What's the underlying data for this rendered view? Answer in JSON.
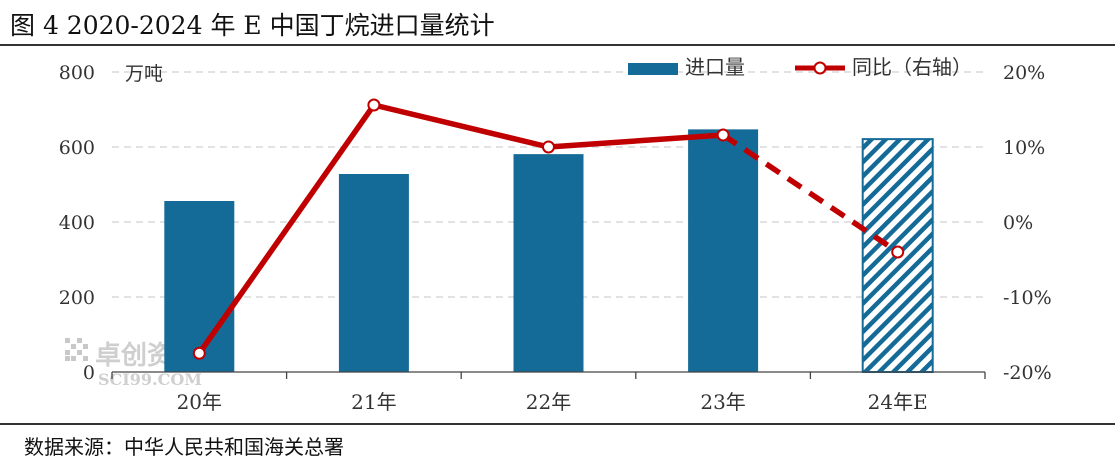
{
  "title": "图 4 2020-2024 年 E 中国丁烷进口量统计",
  "source": "数据来源：中华人民共和国海关总署",
  "watermark": {
    "brand": "卓创资讯",
    "domain": "SCI99.COM"
  },
  "colors": {
    "bar": "#156b98",
    "line": "#c00000",
    "grid": "#d0d0d0",
    "axis": "#444444"
  },
  "chart_data": {
    "type": "bar",
    "categories": [
      "20年",
      "21年",
      "22年",
      "23年",
      "24年E"
    ],
    "series": [
      {
        "name": "进口量",
        "type": "bar",
        "axis": "left",
        "values": [
          456,
          528,
          581,
          647,
          621
        ],
        "hatched_categories": [
          "24年E"
        ]
      },
      {
        "name": "同比（右轴）",
        "type": "line",
        "axis": "right",
        "values": [
          -17.5,
          15.6,
          10.0,
          11.6,
          -4.0
        ],
        "dashed_from_category": "23年"
      }
    ],
    "left_axis": {
      "unit": "万吨",
      "ylim": [
        0,
        800
      ],
      "ticks": [
        "0",
        "200",
        "400",
        "600",
        "800"
      ]
    },
    "right_axis": {
      "ylim": [
        -20,
        20
      ],
      "ticks": [
        "-20%",
        "-10%",
        "0%",
        "10%",
        "20%"
      ]
    },
    "grid": true,
    "legend_position": "top-right"
  }
}
